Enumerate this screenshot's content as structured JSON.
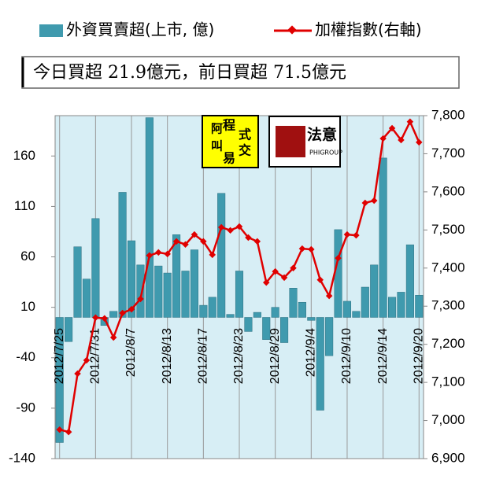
{
  "chart_data": {
    "type": "bar-line",
    "annotation": "今日買超 21.9億元，前日買超 71.5億元",
    "logos": [
      {
        "chars": [
          "阿",
          "叫",
          "程",
          "式",
          "易",
          "交"
        ]
      },
      {
        "chars": [
          "法意",
          "PHIGROUP"
        ]
      }
    ],
    "categories": [
      "2012/7/25",
      null,
      null,
      null,
      "2012/7/31",
      null,
      null,
      null,
      "2012/8/7",
      null,
      null,
      null,
      "2012/8/13",
      null,
      null,
      null,
      "2012/8/17",
      null,
      null,
      null,
      "2012/8/23",
      null,
      null,
      null,
      "2012/8/29",
      null,
      null,
      null,
      "2012/9/4",
      null,
      null,
      null,
      "2012/9/10",
      null,
      null,
      null,
      "2012/9/14",
      null,
      null,
      null,
      "2012/9/20"
    ],
    "series": [
      {
        "name": "外資買賣超(上市, 億)",
        "type": "bar",
        "color": "#3f9aae",
        "values": [
          -124,
          -24,
          70,
          38,
          98,
          -8,
          6,
          124,
          76,
          52,
          198,
          51,
          44,
          82,
          46,
          67,
          12,
          20,
          123,
          3,
          46,
          -14,
          5,
          -22,
          10,
          -25,
          29,
          15,
          -3,
          -92,
          -38,
          87,
          16,
          6,
          30,
          52,
          158,
          20,
          25,
          72,
          22
        ]
      },
      {
        "name": "加權指數(右軸)",
        "type": "line",
        "axis": "y2",
        "color": "#e00000",
        "values": [
          6976,
          6970,
          7123,
          7158,
          7270,
          7268,
          7218,
          7282,
          7292,
          7319,
          7433,
          7441,
          7437,
          7470,
          7462,
          7488,
          7470,
          7435,
          7507,
          7499,
          7509,
          7480,
          7470,
          7362,
          7391,
          7375,
          7400,
          7451,
          7449,
          7369,
          7327,
          7426,
          7488,
          7486,
          7571,
          7577,
          7740,
          7767,
          7736,
          7784,
          7730
        ]
      }
    ],
    "ylim": [
      -140,
      200
    ],
    "yticks": [
      -140,
      -90,
      -40,
      10,
      60,
      110,
      160
    ],
    "y2lim": [
      6900,
      7800
    ],
    "y2ticks": [
      {
        "value": 6900,
        "label": "6,900"
      },
      {
        "value": 7000,
        "label": "7,000"
      },
      {
        "value": 7100,
        "label": "7,100"
      },
      {
        "value": 7200,
        "label": "7,200"
      },
      {
        "value": 7300,
        "label": "7,300"
      },
      {
        "value": 7400,
        "label": "7,400"
      },
      {
        "value": 7500,
        "label": "7,500"
      },
      {
        "value": 7600,
        "label": "7,600"
      },
      {
        "value": 7700,
        "label": "7,700"
      },
      {
        "value": 7800,
        "label": "7,800"
      }
    ],
    "background": "#d7eef5"
  }
}
